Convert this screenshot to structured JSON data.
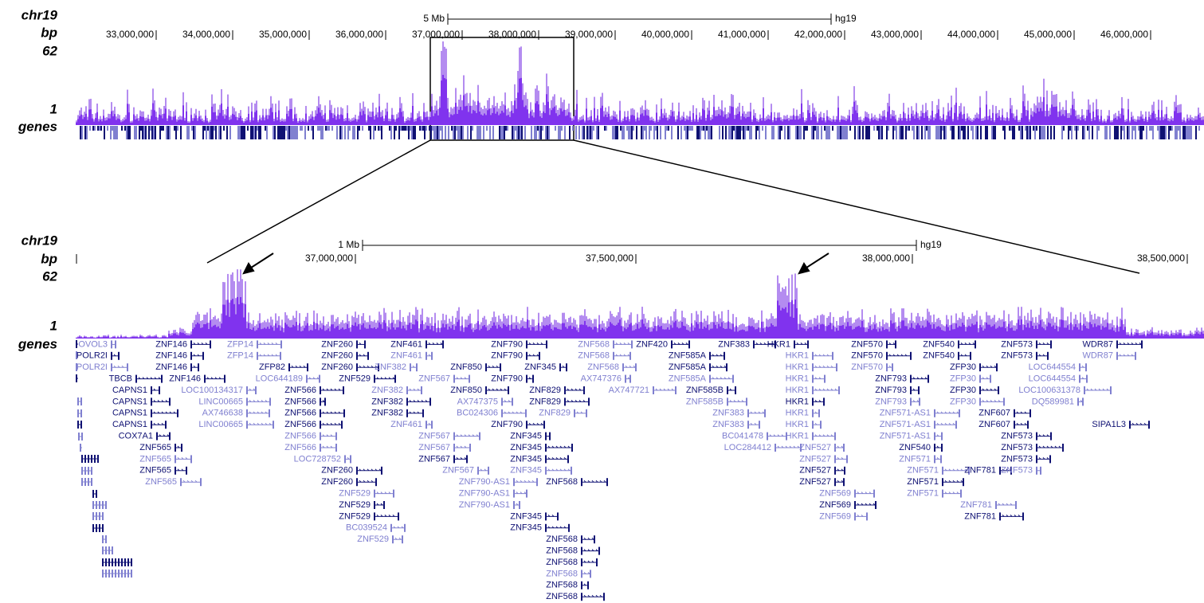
{
  "top": {
    "track_labels": [
      "chr19",
      "bp",
      "62",
      "1",
      "genes"
    ],
    "scale": "5 Mb",
    "assembly": "hg19",
    "positions": [
      "33,000,000",
      "34,000,000",
      "35,000,000",
      "36,000,000",
      "37,000,000",
      "38,000,000",
      "39,000,000",
      "40,000,000",
      "41,000,000",
      "42,000,000",
      "43,000,000",
      "44,000,000",
      "45,000,000",
      "46,000,000"
    ]
  },
  "bottom": {
    "track_labels": [
      "chr19",
      "bp",
      "62",
      "1",
      "genes"
    ],
    "scale": "1 Mb",
    "assembly": "hg19",
    "positions": [
      "37,000,000",
      "37,500,000",
      "38,000,000",
      "38,500,000"
    ]
  },
  "genes": [
    "OVOL3",
    "POLR2I",
    "POLR2I",
    "TBCB",
    "CAPNS1",
    "CAPNS1",
    "CAPNS1",
    "CAPNS1",
    "COX7A1",
    "ZNF565",
    "ZNF565",
    "ZNF565",
    "ZNF565",
    "ZNF146",
    "ZNF146",
    "ZNF146",
    "ZNF146",
    "LOC100134317",
    "LINC00665",
    "AX746638",
    "LINC00665",
    "ZFP14",
    "ZFP14",
    "ZFP82",
    "LOC644189",
    "ZNF260",
    "ZNF260",
    "ZNF260",
    "ZNF529",
    "ZNF566",
    "ZNF566",
    "ZNF566",
    "ZNF566",
    "ZNF566",
    "ZNF566",
    "LOC728752",
    "ZNF260",
    "ZNF260",
    "ZNF529",
    "ZNF529",
    "ZNF529",
    "BC039524",
    "ZNF529",
    "ZNF461",
    "ZNF461",
    "ZNF382",
    "ZNF567",
    "ZNF382",
    "ZNF382",
    "ZNF382",
    "ZNF461",
    "ZNF850",
    "ZNF850",
    "AX747375",
    "BC024306",
    "ZNF567",
    "ZNF567",
    "ZNF567",
    "ZNF567",
    "ZNF790",
    "ZNF790",
    "ZNF345",
    "ZNF790",
    "ZNF829",
    "ZNF829",
    "ZNF829",
    "ZNF790",
    "ZNF345",
    "ZNF345",
    "ZNF345",
    "ZNF345",
    "ZNF790-AS1",
    "ZNF790-AS1",
    "ZNF790-AS1",
    "ZNF345",
    "ZNF345",
    "ZNF568",
    "ZNF568",
    "ZNF568",
    "ZNF568",
    "ZNF568",
    "ZNF568",
    "ZNF568",
    "ZNF568",
    "ZNF568",
    "ZNF568",
    "AX747376",
    "AX747721",
    "ZNF420",
    "ZNF585A",
    "ZNF585A",
    "ZNF585A",
    "ZNF585B",
    "ZNF585B",
    "ZNF383",
    "ZNF383",
    "BC041478",
    "LOC284412",
    "ZNF383",
    "HKR1",
    "HKR1",
    "HKR1",
    "HKR1",
    "HKR1",
    "HKR1",
    "HKR1",
    "HKR1",
    "HKR1",
    "ZNF527",
    "ZNF527",
    "ZNF527",
    "ZNF527",
    "ZNF569",
    "ZNF569",
    "ZNF569",
    "ZNF570",
    "ZNF570",
    "ZNF570",
    "ZNF793",
    "ZNF793",
    "ZNF793",
    "ZNF571-AS1",
    "ZNF571-AS1",
    "ZNF571-AS1",
    "ZNF540",
    "ZNF571",
    "ZNF571",
    "ZNF571",
    "ZNF571",
    "ZNF540",
    "ZNF540",
    "ZFP30",
    "ZFP30",
    "ZFP30",
    "ZFP30",
    "ZNF607",
    "ZNF607",
    "ZNF781",
    "ZNF781",
    "ZNF781",
    "ZNF573",
    "ZNF573",
    "LOC644554",
    "LOC644554",
    "LOC100631378",
    "DQ589981",
    "ZNF573",
    "ZNF573",
    "ZNF573",
    "ZNF573",
    "WDR87",
    "WDR87",
    "SIPA1L3"
  ]
}
